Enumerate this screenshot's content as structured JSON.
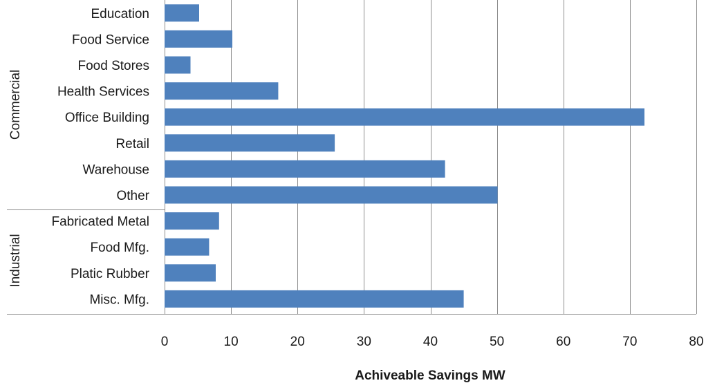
{
  "chart_data": {
    "type": "bar",
    "orientation": "horizontal",
    "xlabel": "Achiveable Savings MW",
    "xlim": [
      0,
      80
    ],
    "xticks": [
      0,
      10,
      20,
      30,
      40,
      50,
      60,
      70,
      80
    ],
    "grid": true,
    "bar_color": "#4f81bd",
    "groups": [
      {
        "name": "Commercial",
        "categories": [
          "Education",
          "Food Service",
          "Food Stores",
          "Health Services",
          "Office Building",
          "Retail",
          "Warehouse",
          "Other"
        ],
        "values": [
          5.2,
          10.2,
          3.9,
          17.1,
          72.2,
          25.6,
          42.2,
          50.1
        ]
      },
      {
        "name": "Industrial",
        "categories": [
          "Fabricated Metal",
          "Food Mfg.",
          "Platic Rubber",
          "Misc. Mfg."
        ],
        "values": [
          8.2,
          6.7,
          7.7,
          45.0
        ]
      }
    ]
  }
}
